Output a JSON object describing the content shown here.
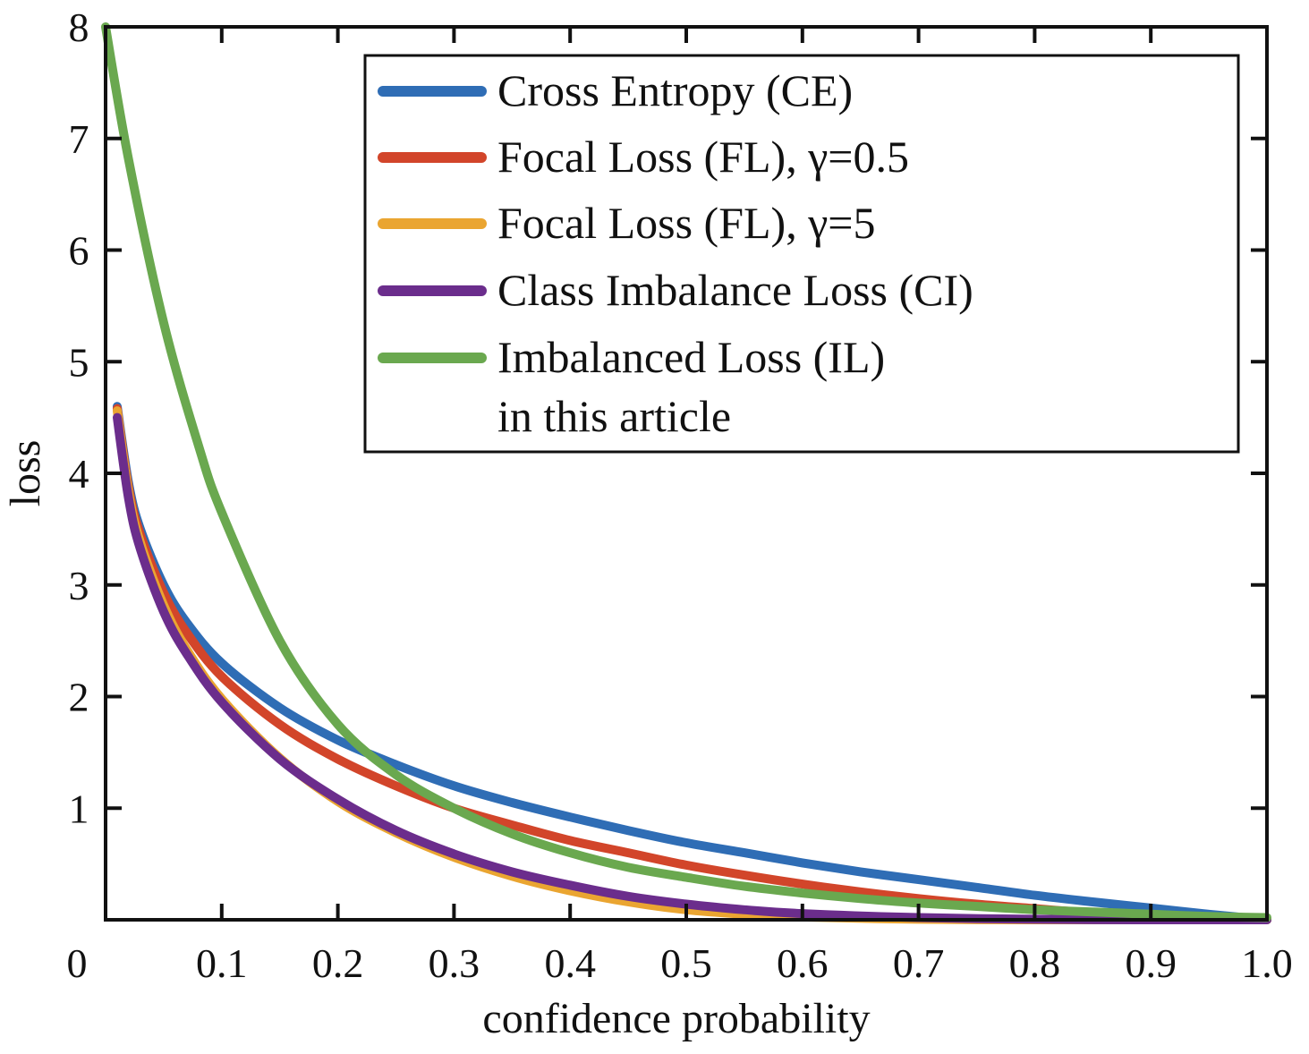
{
  "chart_data": {
    "type": "line",
    "xlabel": "confidence probability",
    "ylabel": "loss",
    "xlim": [
      0,
      1.0
    ],
    "ylim": [
      0,
      8
    ],
    "x_ticks": [
      "0",
      "0.1",
      "0.2",
      "0.3",
      "0.4",
      "0.5",
      "0.6",
      "0.7",
      "0.8",
      "0.9",
      "1.0"
    ],
    "y_ticks": [
      "1",
      "2",
      "3",
      "4",
      "5",
      "6",
      "7",
      "8"
    ],
    "grid": false,
    "legend_position": "top-right",
    "series": [
      {
        "name": "Cross Entropy (CE)",
        "color": "#2f6db5",
        "x": [
          0.01,
          0.02,
          0.03,
          0.05,
          0.07,
          0.1,
          0.15,
          0.2,
          0.25,
          0.3,
          0.35,
          0.4,
          0.45,
          0.5,
          0.55,
          0.6,
          0.65,
          0.7,
          0.75,
          0.8,
          0.85,
          0.9,
          0.95,
          1.0
        ],
        "y": [
          4.6,
          3.9,
          3.5,
          3.0,
          2.66,
          2.3,
          1.9,
          1.61,
          1.39,
          1.2,
          1.05,
          0.92,
          0.8,
          0.69,
          0.6,
          0.51,
          0.43,
          0.36,
          0.29,
          0.22,
          0.16,
          0.105,
          0.05,
          0.0
        ]
      },
      {
        "name": "Focal Loss (FL), γ=0.5",
        "color": "#d2452a",
        "x": [
          0.01,
          0.02,
          0.03,
          0.05,
          0.07,
          0.1,
          0.15,
          0.2,
          0.25,
          0.3,
          0.35,
          0.4,
          0.45,
          0.5,
          0.55,
          0.6,
          0.65,
          0.7,
          0.75,
          0.8,
          0.85,
          0.9,
          0.95,
          1.0
        ],
        "y": [
          4.58,
          3.86,
          3.45,
          2.93,
          2.57,
          2.18,
          1.75,
          1.44,
          1.2,
          1.0,
          0.85,
          0.71,
          0.6,
          0.49,
          0.4,
          0.32,
          0.25,
          0.19,
          0.14,
          0.1,
          0.06,
          0.03,
          0.01,
          0.0
        ]
      },
      {
        "name": "Focal Loss (FL), γ=5",
        "color": "#eaa531",
        "x": [
          0.01,
          0.02,
          0.03,
          0.05,
          0.07,
          0.1,
          0.15,
          0.2,
          0.25,
          0.3,
          0.35,
          0.4,
          0.45,
          0.5,
          0.55,
          0.6,
          0.7,
          0.8,
          0.9,
          1.0
        ],
        "y": [
          4.56,
          3.82,
          3.38,
          2.82,
          2.42,
          1.98,
          1.45,
          1.06,
          0.78,
          0.56,
          0.39,
          0.26,
          0.16,
          0.09,
          0.05,
          0.025,
          0.005,
          0.0,
          0.0,
          0.0
        ]
      },
      {
        "name": "Class Imbalance Loss (CI)",
        "color": "#6b2d8c",
        "x": [
          0.01,
          0.02,
          0.03,
          0.05,
          0.07,
          0.1,
          0.15,
          0.2,
          0.25,
          0.3,
          0.35,
          0.4,
          0.45,
          0.5,
          0.55,
          0.6,
          0.7,
          0.8,
          0.9,
          1.0
        ],
        "y": [
          4.5,
          3.76,
          3.32,
          2.76,
          2.38,
          1.95,
          1.44,
          1.08,
          0.8,
          0.59,
          0.43,
          0.31,
          0.21,
          0.14,
          0.09,
          0.055,
          0.02,
          0.005,
          0.0,
          0.0
        ]
      },
      {
        "name": "Imbalanced Loss (IL)",
        "name_line2": "in this article",
        "color": "#6aa84f",
        "x": [
          0.0,
          0.02,
          0.05,
          0.08,
          0.1,
          0.15,
          0.2,
          0.25,
          0.3,
          0.35,
          0.4,
          0.45,
          0.5,
          0.55,
          0.6,
          0.65,
          0.7,
          0.75,
          0.8,
          0.85,
          0.9,
          0.95,
          1.0
        ],
        "y": [
          8.0,
          6.8,
          5.35,
          4.25,
          3.65,
          2.5,
          1.75,
          1.3,
          1.0,
          0.77,
          0.6,
          0.47,
          0.38,
          0.3,
          0.24,
          0.19,
          0.15,
          0.12,
          0.09,
          0.07,
          0.05,
          0.03,
          0.02
        ]
      }
    ]
  }
}
